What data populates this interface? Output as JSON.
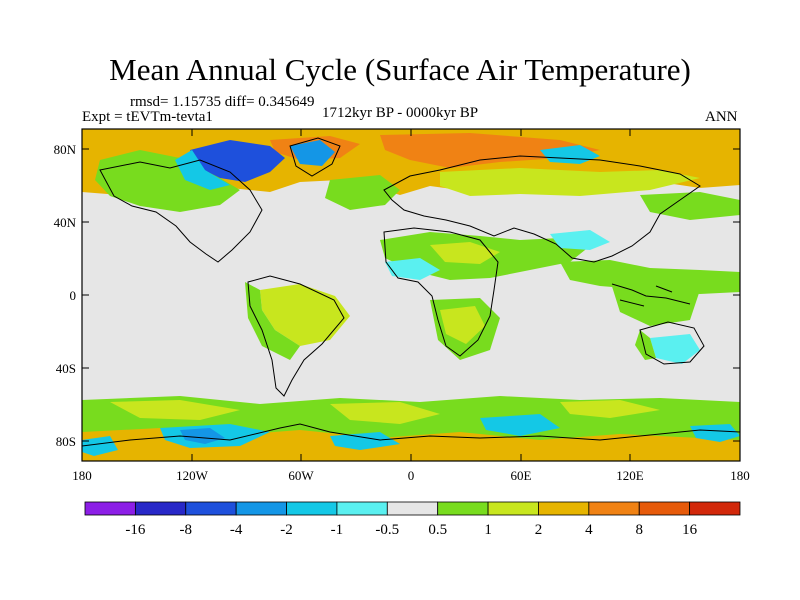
{
  "title": "Mean Annual Cycle (Surface Air Temperature)",
  "stats": "rmsd= 1.15735 diff= 0.345649",
  "experiment": "Expt = tEVTm-tevta1",
  "period": "1712kyr BP - 0000kyr BP",
  "season": "ANN",
  "lat_ticks": [
    "80N",
    "40N",
    "0",
    "40S",
    "80S"
  ],
  "lon_ticks": [
    "180",
    "120W",
    "60W",
    "0",
    "60E",
    "120E",
    "180"
  ],
  "colorbar": {
    "labels": [
      "-16",
      "-8",
      "-4",
      "-2",
      "-1",
      "-0.5",
      "0.5",
      "1",
      "2",
      "4",
      "8",
      "16"
    ],
    "colors": [
      "#8c1ee6",
      "#2828c8",
      "#1e50dc",
      "#1496e6",
      "#14c8e6",
      "#5af0f0",
      "#e6e6e6",
      "#78dc1e",
      "#c8e61e",
      "#e6b400",
      "#f08214",
      "#e65a0a",
      "#d2280a"
    ]
  }
}
